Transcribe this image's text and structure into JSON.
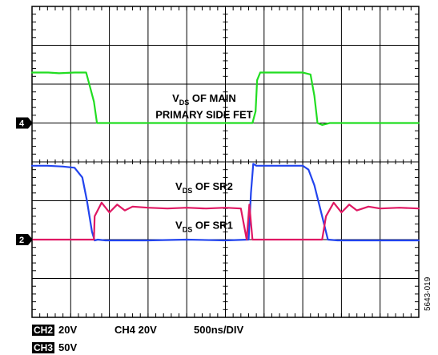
{
  "chart_data": {
    "type": "line",
    "title": "",
    "grid": true,
    "divisions": {
      "x": 10,
      "y": 8
    },
    "time_per_div_ns": 500,
    "y_range_div": [
      -4,
      4
    ],
    "channel_markers": [
      {
        "label": "4",
        "level_div": 1.0
      },
      {
        "label": "2",
        "level_div": -2.0
      }
    ],
    "series": [
      {
        "color": "#22dd22",
        "x": [
          0,
          0.42,
          0.7,
          1.1,
          1.4,
          1.48,
          1.6,
          1.68,
          2.0,
          4.0,
          5.7,
          5.78,
          5.82,
          5.9,
          6.5,
          7.0,
          7.2,
          7.3,
          7.38,
          7.5,
          7.7,
          8.0,
          10.0
        ],
        "y": [
          2.3,
          2.3,
          2.28,
          2.3,
          2.3,
          2.0,
          1.55,
          1.0,
          1.0,
          1.0,
          1.0,
          1.3,
          2.1,
          2.3,
          2.3,
          2.3,
          2.25,
          1.7,
          1.0,
          0.95,
          1.0,
          1.0,
          1.0
        ]
      },
      {
        "color": "#2244ee",
        "x": [
          0,
          0.4,
          0.8,
          1.1,
          1.3,
          1.42,
          1.55,
          1.62,
          1.7,
          1.9,
          3.0,
          4.0,
          5.0,
          5.6,
          5.66,
          5.72,
          5.8,
          6.4,
          7.0,
          7.15,
          7.3,
          7.5,
          7.65,
          7.9,
          9.0,
          10.0
        ],
        "y": [
          -0.1,
          -0.1,
          -0.12,
          -0.15,
          -0.4,
          -1.0,
          -1.8,
          -2.02,
          -2.0,
          -2.02,
          -2.02,
          -2.0,
          -2.02,
          -2.0,
          -0.8,
          -0.05,
          -0.1,
          -0.1,
          -0.1,
          -0.2,
          -0.6,
          -1.4,
          -2.0,
          -2.02,
          -2.02,
          -2.02
        ]
      },
      {
        "color": "#e01863",
        "x": [
          0,
          1.0,
          1.6,
          1.62,
          1.8,
          2.0,
          2.2,
          2.4,
          2.6,
          3.0,
          3.5,
          4.0,
          4.5,
          5.0,
          5.4,
          5.55,
          5.62,
          5.7,
          6.5,
          7.5,
          7.6,
          7.8,
          8.0,
          8.2,
          8.4,
          8.7,
          9.0,
          9.5,
          10.0
        ],
        "y": [
          -2.0,
          -2.0,
          -2.0,
          -1.4,
          -1.05,
          -1.3,
          -1.1,
          -1.25,
          -1.15,
          -1.18,
          -1.2,
          -1.18,
          -1.2,
          -1.18,
          -1.2,
          -2.0,
          -1.1,
          -2.0,
          -2.0,
          -2.0,
          -1.4,
          -1.05,
          -1.3,
          -1.1,
          -1.25,
          -1.15,
          -1.2,
          -1.18,
          -1.2
        ]
      }
    ],
    "annotations": [
      {
        "main": "V",
        "sub": "DS",
        "rest": " OF MAIN",
        "x_div": 4.45,
        "y_div": 1.55
      },
      {
        "main": "PRIMARY SIDE FET",
        "x_div": 4.45,
        "y_div": 1.12
      },
      {
        "main": "V",
        "sub": "DS",
        "rest": " OF SR2",
        "x_div": 4.45,
        "y_div": -0.72
      },
      {
        "main": "V",
        "sub": "DS",
        "rest": " OF SR1",
        "x_div": 4.45,
        "y_div": -1.72
      }
    ]
  },
  "footer": {
    "row1": {
      "ch": "CH2",
      "value": "20V",
      "ch4": "CH4 20V",
      "timebase": "500ns/DIV"
    },
    "row2": {
      "ch": "CH3",
      "value": "50V"
    }
  },
  "figure_id": "5643-019"
}
